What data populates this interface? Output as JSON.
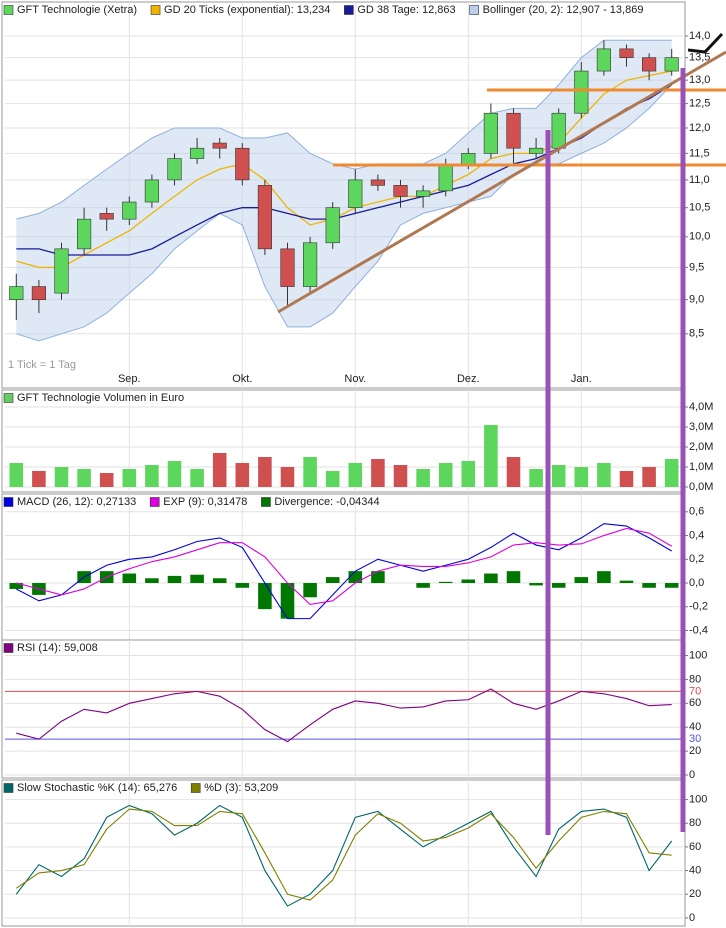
{
  "chart_data": [
    {
      "type": "candlestick",
      "name": "GFT Technologie (Xetra)",
      "up_color": "#5cd65c",
      "down_color": "#d05050",
      "categories": [
        null,
        null,
        null,
        null,
        null,
        "Sep.",
        null,
        null,
        null,
        null,
        "Okt.",
        null,
        null,
        null,
        null,
        "Nov.",
        null,
        null,
        null,
        null,
        "Dez.",
        null,
        null,
        null,
        null,
        "Jan.",
        null,
        null,
        null,
        null
      ],
      "open": [
        9.0,
        9.2,
        9.1,
        9.8,
        10.4,
        10.3,
        10.6,
        11.0,
        11.4,
        11.7,
        11.6,
        10.9,
        9.8,
        9.2,
        9.9,
        10.5,
        11.0,
        10.9,
        10.7,
        10.8,
        11.3,
        11.5,
        12.3,
        11.5,
        11.6,
        12.3,
        13.2,
        13.7,
        13.5,
        13.2
      ],
      "high": [
        9.4,
        9.3,
        9.9,
        10.5,
        10.5,
        10.7,
        11.1,
        11.5,
        11.8,
        11.8,
        11.7,
        11.0,
        9.9,
        10.0,
        10.6,
        11.2,
        11.1,
        11.0,
        10.9,
        11.4,
        11.6,
        12.5,
        12.4,
        11.8,
        12.4,
        13.4,
        13.9,
        13.8,
        13.6,
        13.7
      ],
      "low": [
        8.7,
        8.8,
        9.0,
        9.7,
        10.1,
        10.2,
        10.5,
        10.9,
        11.3,
        11.4,
        10.9,
        9.7,
        8.9,
        9.1,
        9.8,
        10.4,
        10.8,
        10.5,
        10.5,
        10.7,
        11.2,
        11.4,
        11.3,
        11.4,
        11.5,
        12.2,
        13.1,
        13.3,
        13.0,
        13.1
      ],
      "close": [
        9.2,
        9.0,
        9.8,
        10.3,
        10.3,
        10.6,
        11.0,
        11.4,
        11.6,
        11.6,
        11.0,
        9.8,
        9.2,
        9.9,
        10.5,
        11.0,
        10.9,
        10.7,
        10.8,
        11.3,
        11.5,
        12.3,
        11.6,
        11.6,
        12.3,
        13.2,
        13.7,
        13.5,
        13.2,
        13.5
      ],
      "series": [
        {
          "name": "GD 20 Ticks (exponential): 13,234",
          "color": "#f0b400",
          "values": [
            9.6,
            9.5,
            9.5,
            9.7,
            9.9,
            10.1,
            10.4,
            10.7,
            11.0,
            11.2,
            11.3,
            11.0,
            10.5,
            10.2,
            10.3,
            10.5,
            10.6,
            10.7,
            10.7,
            10.9,
            11.1,
            11.4,
            11.5,
            11.5,
            11.7,
            12.2,
            12.7,
            13.0,
            13.1,
            13.2
          ]
        },
        {
          "name": "GD 38 Tage: 12,863",
          "color": "#1a1a9a",
          "values": [
            9.8,
            9.8,
            9.7,
            9.7,
            9.7,
            9.7,
            9.8,
            10.0,
            10.2,
            10.4,
            10.5,
            10.5,
            10.4,
            10.3,
            10.3,
            10.4,
            10.5,
            10.6,
            10.7,
            10.8,
            10.9,
            11.1,
            11.3,
            11.4,
            11.6,
            11.8,
            12.1,
            12.4,
            12.6,
            12.9
          ]
        }
      ],
      "bands": {
        "name": "Bollinger (20, 2): 12,907 - 13,869",
        "color": "#b9cfec",
        "upper": [
          10.3,
          10.4,
          10.6,
          10.9,
          11.2,
          11.5,
          11.8,
          12.0,
          12.0,
          12.0,
          11.8,
          11.8,
          11.9,
          11.5,
          11.3,
          11.2,
          11.3,
          11.3,
          11.3,
          11.5,
          11.9,
          12.3,
          12.4,
          12.4,
          12.9,
          13.5,
          13.9,
          13.9,
          13.9,
          13.9
        ],
        "lower": [
          8.5,
          8.4,
          8.5,
          8.6,
          8.8,
          9.1,
          9.4,
          9.8,
          10.1,
          10.4,
          10.2,
          9.2,
          8.6,
          8.6,
          8.8,
          9.2,
          9.6,
          10.2,
          10.4,
          10.5,
          10.6,
          10.7,
          11.1,
          11.3,
          11.3,
          11.5,
          11.7,
          12.0,
          12.4,
          12.9
        ]
      },
      "annotation": "1 Tick = 1 Tag",
      "log": true,
      "ylim": [
        8.0,
        14.5
      ],
      "yticks": [
        {
          "value": 8.5,
          "label": "8,5"
        },
        {
          "value": 9.0,
          "label": "9,0"
        },
        {
          "value": 9.5,
          "label": "9,5"
        },
        {
          "value": 10.0,
          "label": "10,0"
        },
        {
          "value": 10.5,
          "label": "10,5"
        },
        {
          "value": 11.0,
          "label": "11,0"
        },
        {
          "value": 11.5,
          "label": "11,5"
        },
        {
          "value": 12.0,
          "label": "12,0"
        },
        {
          "value": 12.5,
          "label": "12,5"
        },
        {
          "value": 13.0,
          "label": "13,0"
        },
        {
          "value": 13.5,
          "label": "13,5"
        },
        {
          "value": 14.0,
          "label": "14,0"
        }
      ],
      "grid": true
    },
    {
      "type": "bar",
      "title": "GFT Technologie Volumen in Euro",
      "color": "#66cc66",
      "values": [
        1200000,
        800000,
        1000000,
        900000,
        700000,
        900000,
        1100000,
        1300000,
        900000,
        1700000,
        1200000,
        1500000,
        1000000,
        1500000,
        800000,
        1200000,
        1400000,
        1100000,
        900000,
        1200000,
        1300000,
        3100000,
        1500000,
        900000,
        1100000,
        1000000,
        1200000,
        800000,
        1000000,
        1400000
      ],
      "ylim": [
        0,
        4750000
      ],
      "yticks": [
        {
          "value": 0,
          "label": "0,0M"
        },
        {
          "value": 1000000,
          "label": "1,0M"
        },
        {
          "value": 2000000,
          "label": "2,0M"
        },
        {
          "value": 3000000,
          "label": "3,0M"
        },
        {
          "value": 4000000,
          "label": "4,0M"
        }
      ],
      "grid": true
    },
    {
      "type": "line",
      "series": [
        {
          "name": "MACD (26, 12): 0,27133",
          "color": "#0000dd",
          "values": [
            -0.05,
            -0.15,
            -0.1,
            0.05,
            0.15,
            0.2,
            0.22,
            0.28,
            0.35,
            0.38,
            0.3,
            0.0,
            -0.3,
            -0.3,
            -0.1,
            0.1,
            0.2,
            0.15,
            0.1,
            0.15,
            0.2,
            0.3,
            0.42,
            0.32,
            0.28,
            0.38,
            0.5,
            0.48,
            0.38,
            0.27
          ]
        },
        {
          "name": "EXP (9): 0,31478",
          "color": "#dd00dd",
          "values": [
            0.0,
            -0.05,
            -0.1,
            -0.05,
            0.05,
            0.12,
            0.18,
            0.22,
            0.28,
            0.34,
            0.34,
            0.22,
            0.0,
            -0.18,
            -0.15,
            0.0,
            0.1,
            0.15,
            0.14,
            0.14,
            0.17,
            0.22,
            0.32,
            0.34,
            0.32,
            0.33,
            0.4,
            0.46,
            0.42,
            0.31
          ]
        },
        {
          "name": "Divergence: -0,04344",
          "color": "#007700",
          "type": "bar",
          "values": [
            -0.05,
            -0.1,
            0.0,
            0.1,
            0.1,
            0.08,
            0.04,
            0.06,
            0.07,
            0.04,
            -0.04,
            -0.22,
            -0.3,
            -0.12,
            0.05,
            0.1,
            0.1,
            0.0,
            -0.04,
            0.01,
            0.03,
            0.08,
            0.1,
            -0.02,
            -0.04,
            0.05,
            0.1,
            0.02,
            -0.04,
            -0.04
          ]
        }
      ],
      "ylim": [
        -0.48,
        0.75
      ],
      "yticks": [
        {
          "value": -0.4,
          "label": "-0,4"
        },
        {
          "value": -0.2,
          "label": "-0,2"
        },
        {
          "value": 0,
          "label": "0,0"
        },
        {
          "value": 0.2,
          "label": "0,2"
        },
        {
          "value": 0.4,
          "label": "0,4"
        },
        {
          "value": 0.6,
          "label": "0,6"
        }
      ],
      "grid": true
    },
    {
      "type": "line",
      "series": [
        {
          "name": "RSI (14): 59,008",
          "color": "#800080",
          "values": [
            35,
            30,
            45,
            55,
            52,
            60,
            64,
            68,
            70,
            66,
            55,
            38,
            28,
            42,
            55,
            62,
            60,
            56,
            57,
            62,
            63,
            72,
            60,
            55,
            62,
            70,
            68,
            64,
            58,
            59
          ]
        }
      ],
      "hlines": [
        {
          "value": 70,
          "color": "#e04848"
        },
        {
          "value": 30,
          "color": "#5050e0"
        }
      ],
      "ylim": [
        -2.5,
        113
      ],
      "yticks": [
        0,
        20,
        40,
        60,
        80,
        100
      ],
      "grid": true
    },
    {
      "type": "line",
      "series": [
        {
          "name": "Slow Stochastic %K (14): 65,276",
          "color": "#006666",
          "values": [
            20,
            45,
            35,
            50,
            85,
            95,
            88,
            70,
            80,
            95,
            85,
            40,
            10,
            20,
            40,
            85,
            90,
            75,
            60,
            70,
            80,
            90,
            60,
            35,
            75,
            90,
            92,
            85,
            40,
            65
          ]
        },
        {
          "name": "%D (3): 53,209",
          "color": "#808000",
          "values": [
            25,
            38,
            40,
            45,
            75,
            92,
            90,
            78,
            78,
            90,
            88,
            55,
            20,
            15,
            32,
            70,
            88,
            80,
            65,
            68,
            76,
            88,
            68,
            42,
            65,
            85,
            90,
            88,
            55,
            53
          ]
        }
      ],
      "ylim": [
        -6,
        114
      ],
      "yticks": [
        0,
        20,
        40,
        60,
        80,
        100
      ],
      "grid": true
    }
  ]
}
